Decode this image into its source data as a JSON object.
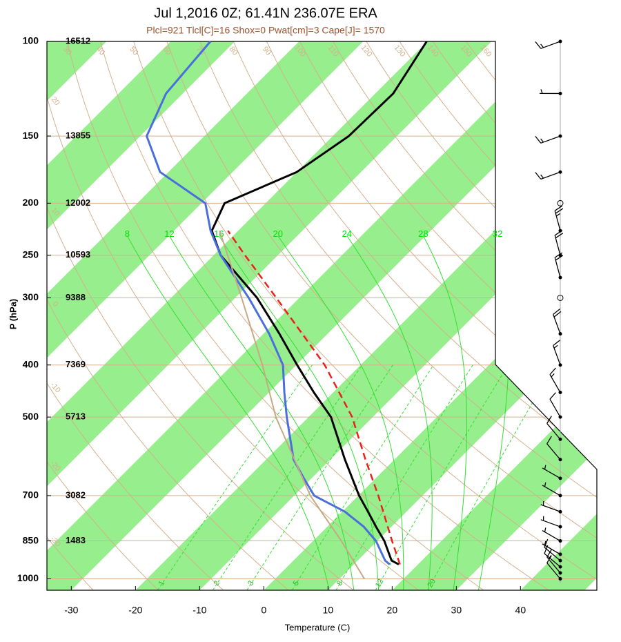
{
  "chart_data": {
    "type": "skewt",
    "title": "Jul 1,2016 0Z; 61.41N 236.07E ERA",
    "subtitle": "Plcl=921 Tlcl[C]=16 Shox=0 Pwat[cm]=3 Cape[J]= 1570",
    "xlabel": "Temperature (C)",
    "ylabel": "P (hPa)",
    "xlim": [
      -33.8,
      51.9
    ],
    "xticks": [
      -30,
      -20,
      -10,
      0,
      10,
      20,
      30,
      40
    ],
    "ylim": [
      100,
      1050
    ],
    "yticks": [
      100,
      150,
      200,
      250,
      300,
      400,
      500,
      700,
      850,
      1000
    ],
    "log_y": true,
    "heights": [
      16512,
      13855,
      12002,
      10593,
      9388,
      7369,
      5713,
      3082,
      1483,
      null
    ],
    "band_color": "#96ee8c",
    "dry_adiabat_color": "#d4b08c",
    "dry_adiabats": [
      -30,
      -20,
      -10,
      0,
      10,
      20,
      30,
      40,
      50,
      60,
      70,
      80,
      90,
      100,
      110,
      120,
      130,
      140,
      150,
      160
    ],
    "isotherm_labels": [
      -30,
      -20,
      -10,
      0,
      10,
      20,
      30
    ],
    "moist_color": "#33dd33",
    "moist_adiabats": [
      8,
      12,
      16,
      20,
      24,
      28,
      32
    ],
    "mixing_ratios": [
      1,
      2,
      3,
      5,
      8,
      12,
      20
    ],
    "series": [
      {
        "color": "#000000",
        "style": "solid",
        "width": 3,
        "pressure": [
          940,
          925,
          850,
          800,
          750,
          700,
          600,
          500,
          450,
          400,
          350,
          300,
          250,
          225,
          200,
          175,
          150,
          125,
          100
        ],
        "values": [
          17.0,
          15.3,
          11.1,
          7.6,
          4.0,
          0.1,
          -7.7,
          -16.5,
          -23.0,
          -29.9,
          -37.5,
          -46.6,
          -58.9,
          -64.1,
          -66.4,
          -60.0,
          -57.5,
          -57.2,
          -60.1
        ]
      },
      {
        "color": "#4a6fdc",
        "style": "solid",
        "width": 3,
        "pressure": [
          940,
          925,
          850,
          800,
          750,
          700,
          650,
          600,
          500,
          450,
          400,
          350,
          300,
          250,
          225,
          200,
          175,
          150,
          125,
          100
        ],
        "values": [
          15.6,
          14.3,
          9.8,
          5.7,
          0.4,
          -6.9,
          -11.2,
          -15.7,
          -23.4,
          -27.6,
          -32.1,
          -39.1,
          -47.9,
          -58.9,
          -64.3,
          -69.4,
          -81.3,
          -89.0,
          -92.6,
          -93.8
        ]
      },
      {
        "color": "#e8221a",
        "style": "dashed",
        "width": 2.5,
        "pressure": [
          940,
          850,
          700,
          600,
          500,
          400,
          300,
          250,
          225
        ],
        "values": [
          17.2,
          12.3,
          3.1,
          -4.5,
          -13.2,
          -25.6,
          -43.6,
          -55.1,
          -61.6
        ]
      },
      {
        "color": "#c8a882",
        "style": "solid",
        "width": 2,
        "pressure": [
          1000,
          850,
          700,
          500,
          400,
          300,
          250,
          225
        ],
        "values": [
          13.9,
          4.4,
          -7.5,
          -25.1,
          -35.3,
          -49.0,
          -57.8,
          -62.9
        ]
      }
    ],
    "wind": {
      "pressure": [
        100,
        125,
        150,
        175,
        200,
        225,
        250,
        275,
        300,
        350,
        400,
        450,
        500,
        550,
        600,
        650,
        700,
        750,
        800,
        850,
        900,
        925,
        950,
        975,
        1000
      ],
      "speed": [
        15,
        5,
        15,
        15,
        0,
        25,
        20,
        20,
        0,
        20,
        15,
        15,
        10,
        10,
        10,
        5,
        5,
        5,
        5,
        5,
        5,
        10,
        10,
        15,
        10
      ],
      "direction": [
        250,
        270,
        250,
        250,
        0,
        345,
        345,
        345,
        0,
        340,
        340,
        330,
        330,
        320,
        320,
        300,
        300,
        290,
        290,
        300,
        300,
        310,
        310,
        320,
        320
      ]
    }
  }
}
